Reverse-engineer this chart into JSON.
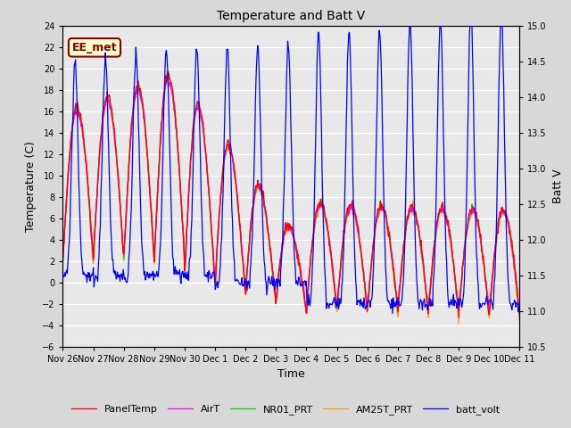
{
  "title": "Temperature and Batt V",
  "xlabel": "Time",
  "ylabel_left": "Temperature (C)",
  "ylabel_right": "Batt V",
  "ylim_left": [
    -6,
    24
  ],
  "ylim_right": [
    10.5,
    15.0
  ],
  "yticks_left": [
    -6,
    -4,
    -2,
    0,
    2,
    4,
    6,
    8,
    10,
    12,
    14,
    16,
    18,
    20,
    22,
    24
  ],
  "yticks_right": [
    10.5,
    11.0,
    11.5,
    12.0,
    12.5,
    13.0,
    13.5,
    14.0,
    14.5,
    15.0
  ],
  "xtick_labels": [
    "Nov 26",
    "Nov 27",
    "Nov 28",
    "Nov 29",
    "Nov 30",
    "Dec 1",
    "Dec 2",
    "Dec 3",
    "Dec 4",
    "Dec 5",
    "Dec 6",
    "Dec 7",
    "Dec 8",
    "Dec 9",
    "Dec 10",
    "Dec 11"
  ],
  "fig_bg_color": "#d8d8d8",
  "plot_bg_color": "#e8e8e8",
  "grid_color": "#ffffff",
  "colors": {
    "PanelTemp": "#ff0000",
    "AirT": "#ff00ff",
    "NR01_PRT": "#00dd00",
    "AM25T_PRT": "#ff9900",
    "batt_volt": "#0000ff"
  },
  "legend_label_box": "EE_met",
  "legend_label_box_color": "#880000",
  "legend_label_box_bg": "#ffffcc",
  "n_points_per_day": 48,
  "n_days": 15
}
